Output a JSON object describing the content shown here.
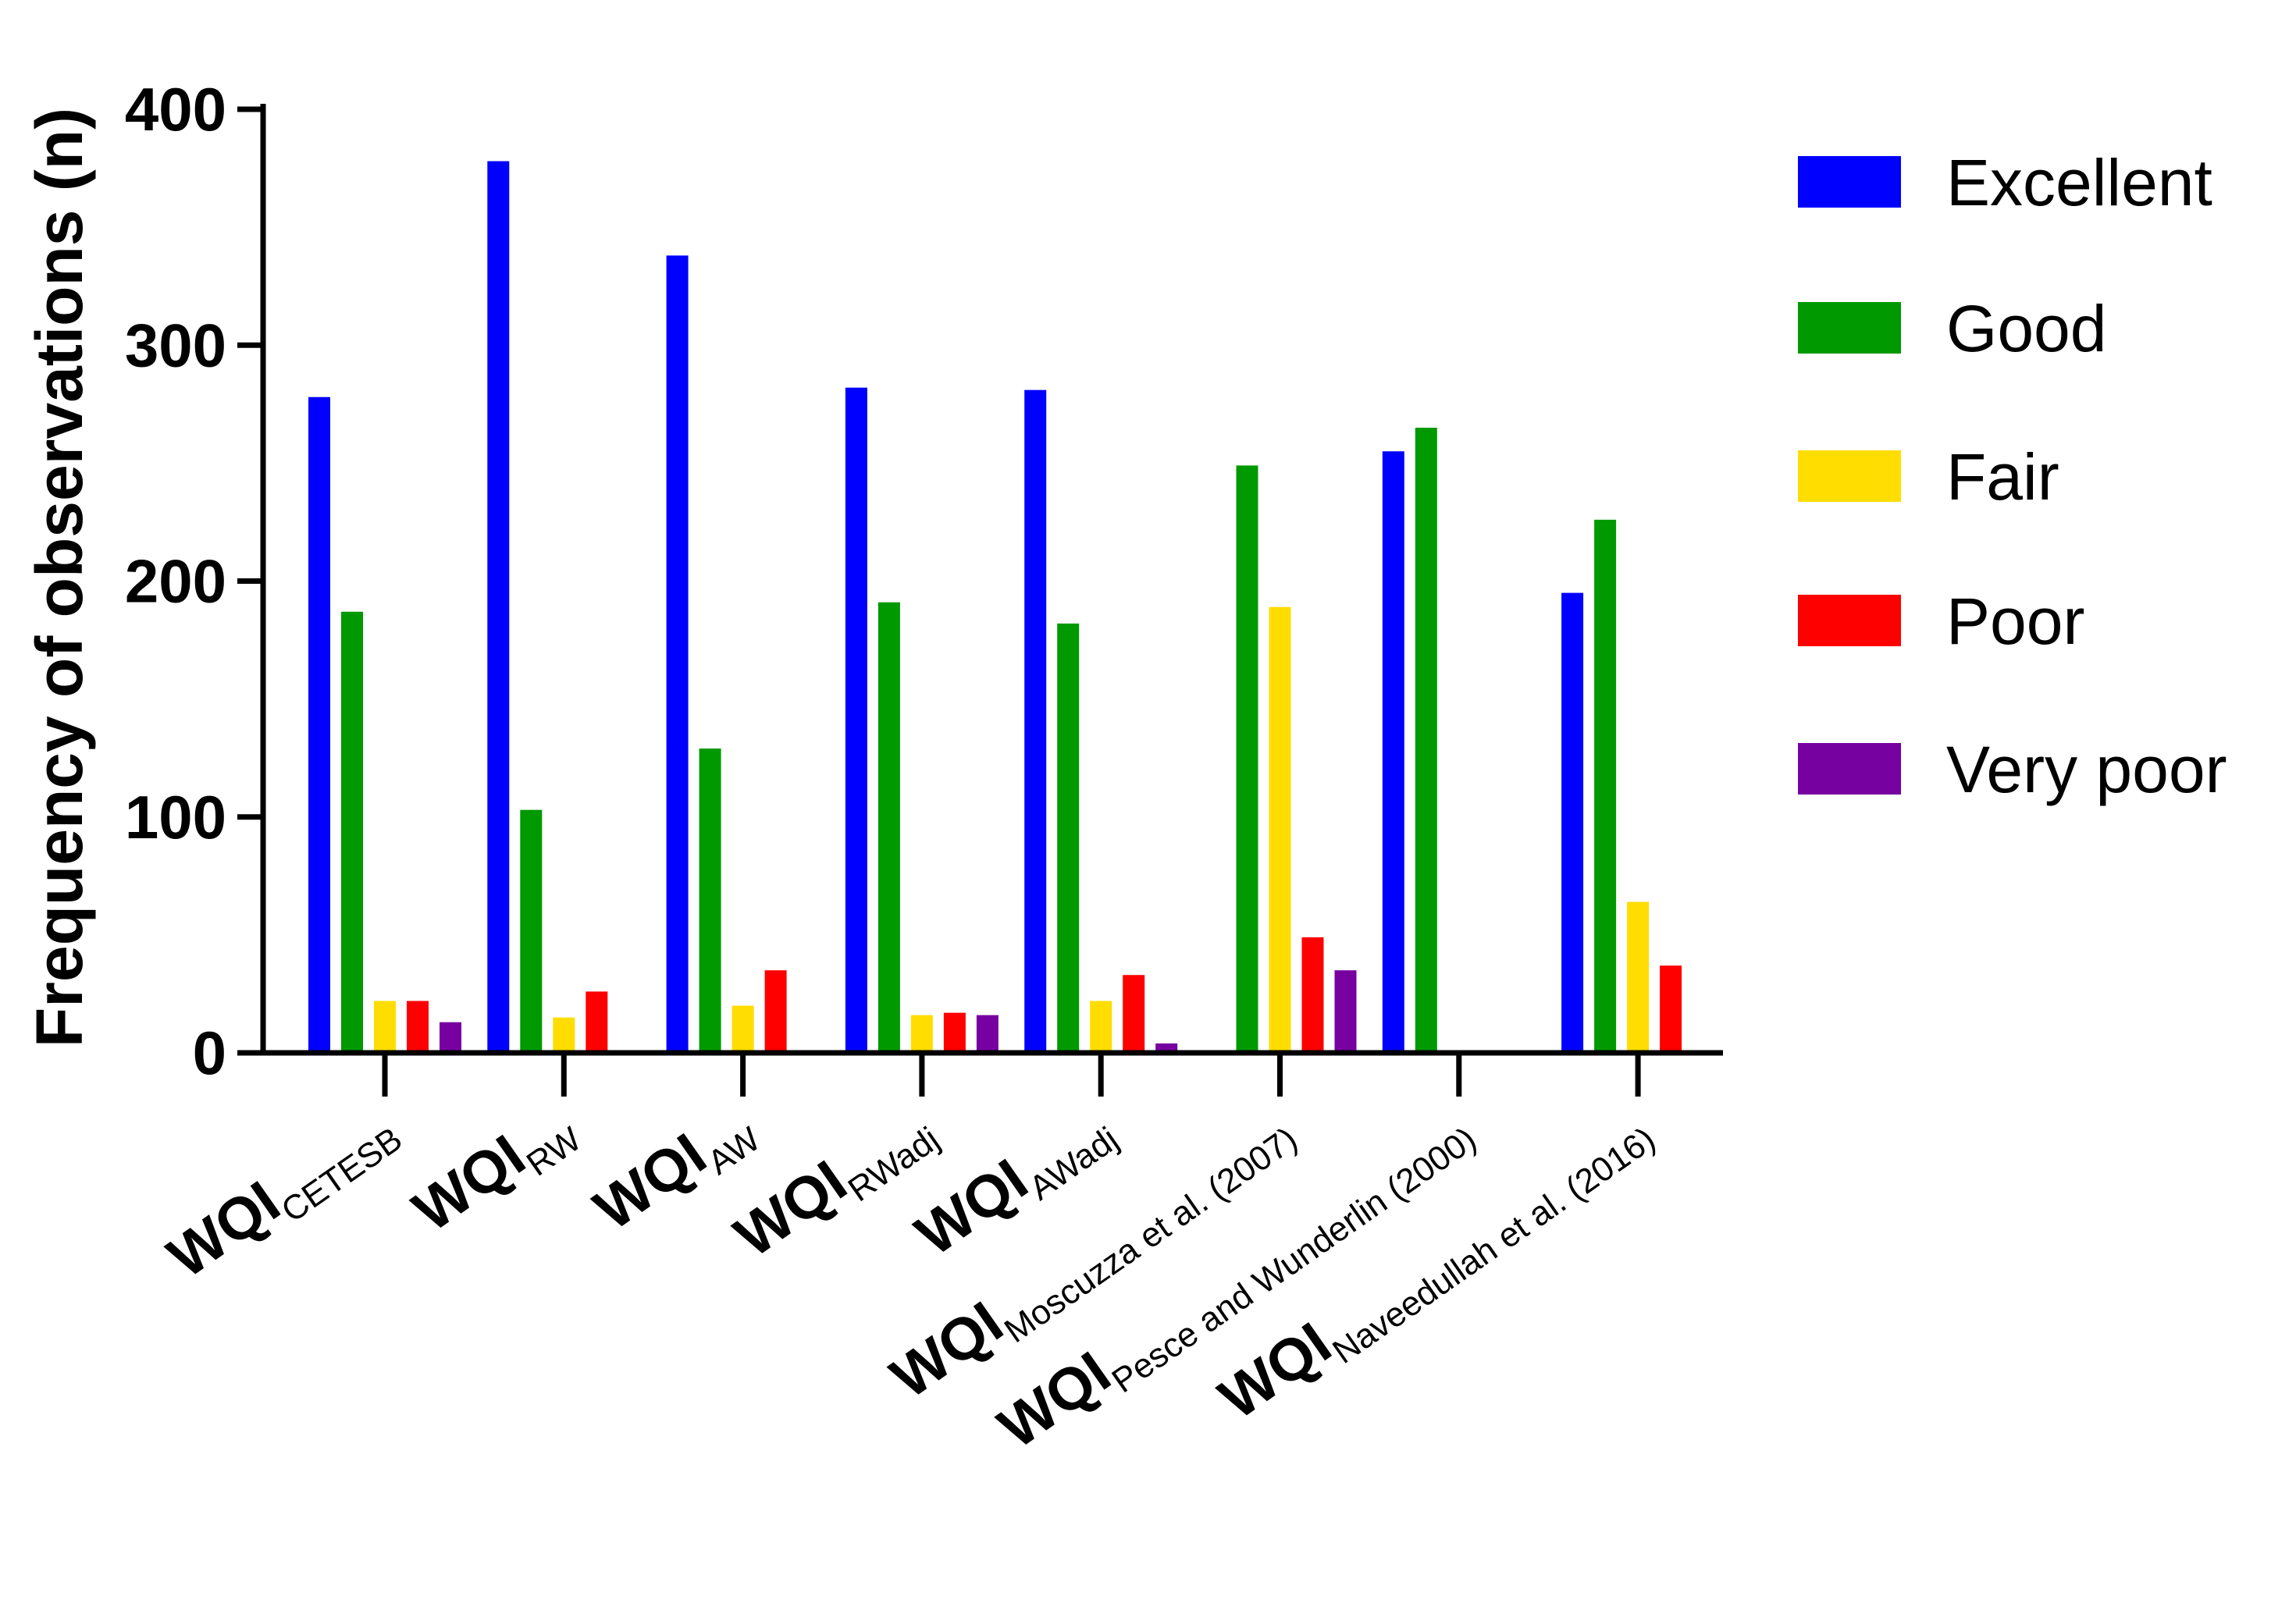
{
  "chart_data": {
    "type": "bar",
    "title": "",
    "xlabel": "",
    "ylabel": "Frequency of observations  (n)",
    "ylim": [
      0,
      400
    ],
    "yticks": [
      0,
      100,
      200,
      300,
      400
    ],
    "grid": false,
    "legend_position": "right",
    "categories": [
      {
        "main": "WQI",
        "sub": "CETESB"
      },
      {
        "main": "WQI",
        "sub": "RW"
      },
      {
        "main": "WQI",
        "sub": "AW"
      },
      {
        "main": "WQI",
        "sub": "RWadj"
      },
      {
        "main": "WQI",
        "sub": "AWadj"
      },
      {
        "main": "WQI",
        "sub": "Moscuzza et al. (2007)"
      },
      {
        "main": "WQI",
        "sub": "Pesce and Wunderlin (2000)"
      },
      {
        "main": "WQI",
        "sub": "Naveedullah et al. (2016)"
      }
    ],
    "series": [
      {
        "name": "Excellent",
        "color": "#0000ff",
        "values": [
          278,
          378,
          338,
          282,
          281,
          0,
          255,
          195
        ]
      },
      {
        "name": "Good",
        "color": "#009900",
        "values": [
          187,
          103,
          129,
          191,
          182,
          249,
          265,
          226
        ]
      },
      {
        "name": "Fair",
        "color": "#ffdd00",
        "values": [
          22,
          15,
          20,
          16,
          22,
          189,
          0,
          64
        ]
      },
      {
        "name": "Poor",
        "color": "#ff0000",
        "values": [
          22,
          26,
          35,
          17,
          33,
          49,
          0,
          37
        ]
      },
      {
        "name": "Very poor",
        "color": "#7700a0",
        "values": [
          13,
          0,
          0,
          16,
          4,
          35,
          0,
          0
        ]
      }
    ]
  }
}
